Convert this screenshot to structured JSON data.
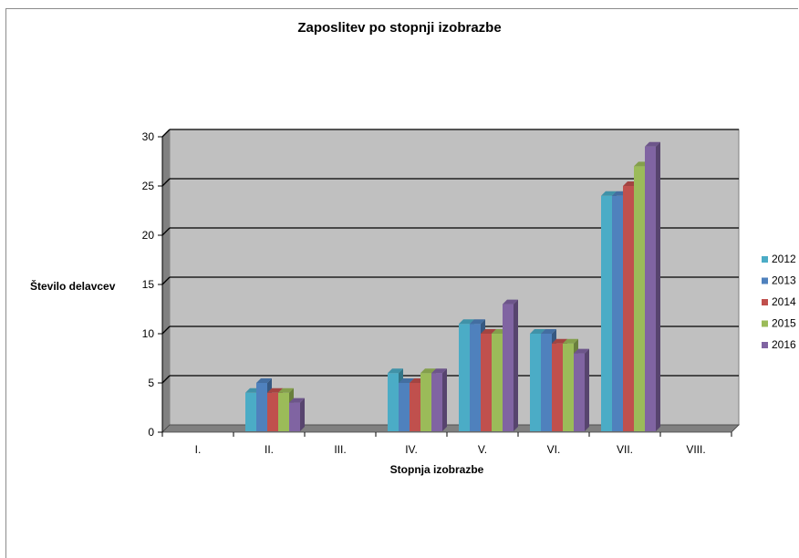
{
  "chart_data": {
    "type": "bar",
    "title": "Zaposlitev po stopnji izobrazbe",
    "xlabel": "Stopnja izobrazbe",
    "ylabel": "Število delavcev",
    "categories": [
      "I.",
      "II.",
      "III.",
      "IV.",
      "V.",
      "VI.",
      "VII.",
      "VIII."
    ],
    "ylim": [
      0,
      30
    ],
    "yticks": [
      "0",
      "5",
      "10",
      "15",
      "20",
      "25",
      "30"
    ],
    "grid": true,
    "legend_position": "right",
    "series": [
      {
        "name": "2012",
        "color": "#4bacc6",
        "values": [
          0,
          4,
          0,
          6,
          11,
          10,
          24,
          0
        ]
      },
      {
        "name": "2013",
        "color": "#4f81bd",
        "values": [
          0,
          5,
          0,
          5,
          11,
          10,
          24,
          0
        ]
      },
      {
        "name": "2014",
        "color": "#c0504d",
        "values": [
          0,
          4,
          0,
          5,
          10,
          9,
          25,
          0
        ]
      },
      {
        "name": "2015",
        "color": "#9bbb59",
        "values": [
          0,
          4,
          0,
          6,
          10,
          9,
          27,
          0
        ]
      },
      {
        "name": "2016",
        "color": "#8064a2",
        "values": [
          0,
          3,
          0,
          6,
          13,
          8,
          29,
          0
        ]
      }
    ]
  }
}
